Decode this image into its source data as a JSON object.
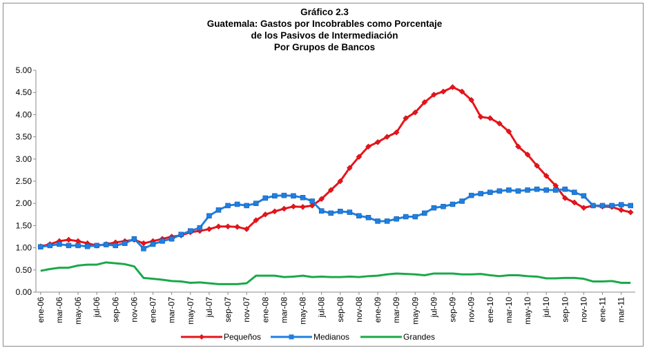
{
  "chart_data": {
    "type": "line",
    "title": [
      "Gráfico 2.3",
      "Guatemala: Gastos por Incobrables como Porcentaje",
      "de los Pasivos de Intermediación",
      "Por Grupos de Bancos"
    ],
    "categories": [
      "ene-06",
      null,
      "mar-06",
      null,
      "may-06",
      null,
      "jul-06",
      null,
      "sep-06",
      null,
      "nov-06",
      null,
      "ene-07",
      null,
      "mar-07",
      null,
      "may-07",
      null,
      "jul-07",
      null,
      "sep-07",
      null,
      "nov-07",
      null,
      "ene-08",
      null,
      "mar-08",
      null,
      "may-08",
      null,
      "jul-08",
      null,
      "sep-08",
      null,
      "nov-08",
      null,
      "ene-09",
      null,
      "mar-09",
      null,
      "may-09",
      null,
      "jul-09",
      null,
      "sep-09",
      null,
      "nov-09",
      null,
      "ene-10",
      null,
      "mar-10",
      null,
      "may-10",
      null,
      "jul-10",
      null,
      "sep-10",
      null,
      "nov-10",
      null,
      "ene-11",
      null,
      "mar-11",
      null
    ],
    "series": [
      {
        "name": "Pequeños",
        "color": "#e8141b",
        "marker": "diamond",
        "values": [
          1.03,
          1.08,
          1.15,
          1.18,
          1.15,
          1.1,
          1.05,
          1.08,
          1.12,
          1.15,
          1.18,
          1.1,
          1.15,
          1.2,
          1.25,
          1.28,
          1.35,
          1.38,
          1.42,
          1.48,
          1.48,
          1.47,
          1.42,
          1.62,
          1.75,
          1.82,
          1.88,
          1.93,
          1.92,
          1.95,
          2.1,
          2.3,
          2.5,
          2.8,
          3.05,
          3.28,
          3.38,
          3.5,
          3.6,
          3.92,
          4.05,
          4.28,
          4.45,
          4.52,
          4.62,
          4.52,
          4.33,
          3.95,
          3.92,
          3.8,
          3.62,
          3.28,
          3.1,
          2.85,
          2.62,
          2.4,
          2.12,
          2.02,
          1.9,
          1.95,
          1.93,
          1.92,
          1.85,
          1.8
        ]
      },
      {
        "name": "Medianos",
        "color": "#1f7fe0",
        "marker": "square",
        "values": [
          1.02,
          1.05,
          1.08,
          1.05,
          1.05,
          1.03,
          1.05,
          1.07,
          1.05,
          1.1,
          1.2,
          0.98,
          1.08,
          1.15,
          1.2,
          1.3,
          1.38,
          1.45,
          1.72,
          1.85,
          1.95,
          1.98,
          1.95,
          2.0,
          2.12,
          2.17,
          2.18,
          2.17,
          2.13,
          2.05,
          1.83,
          1.78,
          1.82,
          1.8,
          1.72,
          1.68,
          1.6,
          1.6,
          1.65,
          1.7,
          1.7,
          1.78,
          1.9,
          1.93,
          1.98,
          2.05,
          2.18,
          2.22,
          2.25,
          2.28,
          2.3,
          2.28,
          2.3,
          2.32,
          2.3,
          2.3,
          2.32,
          2.25,
          2.17,
          1.95,
          1.95,
          1.95,
          1.97,
          1.95
        ]
      },
      {
        "name": "Grandes",
        "color": "#1aa84a",
        "marker": "none",
        "values": [
          0.48,
          0.52,
          0.55,
          0.55,
          0.6,
          0.62,
          0.62,
          0.67,
          0.65,
          0.63,
          0.58,
          0.32,
          0.3,
          0.28,
          0.25,
          0.24,
          0.21,
          0.22,
          0.2,
          0.18,
          0.18,
          0.18,
          0.2,
          0.37,
          0.37,
          0.37,
          0.34,
          0.35,
          0.37,
          0.34,
          0.35,
          0.34,
          0.34,
          0.35,
          0.34,
          0.36,
          0.37,
          0.4,
          0.42,
          0.41,
          0.4,
          0.38,
          0.42,
          0.42,
          0.42,
          0.4,
          0.4,
          0.41,
          0.38,
          0.36,
          0.38,
          0.38,
          0.36,
          0.35,
          0.31,
          0.31,
          0.32,
          0.32,
          0.3,
          0.24,
          0.24,
          0.25,
          0.21,
          0.21
        ]
      }
    ],
    "ylim": [
      0,
      5
    ],
    "yticks": [
      {
        "value": 0,
        "label": "0.00"
      },
      {
        "value": 0.5,
        "label": "0.50"
      },
      {
        "value": 1,
        "label": "1.00"
      },
      {
        "value": 1.5,
        "label": "1.50"
      },
      {
        "value": 2,
        "label": "2.00"
      },
      {
        "value": 2.5,
        "label": "2.50"
      },
      {
        "value": 3,
        "label": "3.00"
      },
      {
        "value": 3.5,
        "label": "3.50"
      },
      {
        "value": 4,
        "label": "4.00"
      },
      {
        "value": 4.5,
        "label": "4.50"
      },
      {
        "value": 5,
        "label": "5.00"
      }
    ],
    "grid": false,
    "legend": "bottom"
  }
}
